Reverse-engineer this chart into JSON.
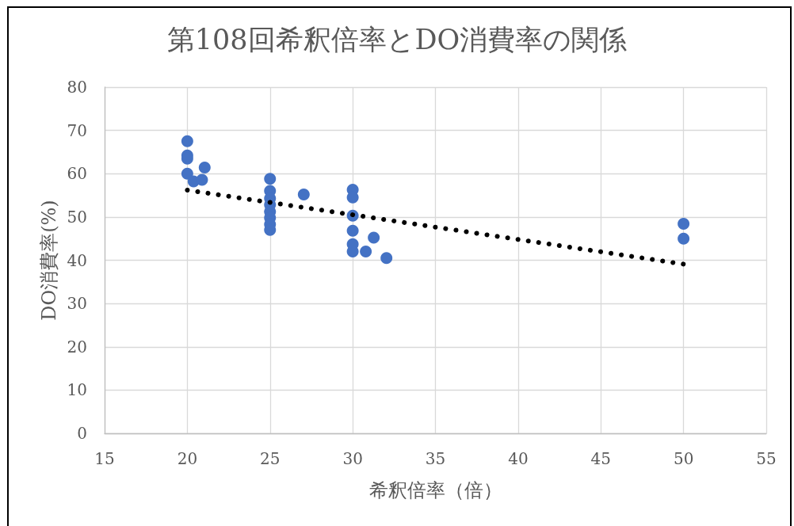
{
  "chart_data": {
    "type": "scatter",
    "title": "第108回希釈倍率とDO消費率の関係",
    "xlabel": "希釈倍率（倍）",
    "ylabel": "DO消費率(%)",
    "xlim": [
      15,
      55
    ],
    "xticks": [
      15,
      20,
      25,
      30,
      35,
      40,
      45,
      50,
      55
    ],
    "ylim": [
      0,
      80
    ],
    "yticks": [
      0,
      10,
      20,
      30,
      40,
      50,
      60,
      70,
      80
    ],
    "grid": true,
    "series": [
      {
        "type": "scatter",
        "color": "#4472c4",
        "marker": "circle",
        "x": [
          20,
          20,
          20,
          20,
          20.38,
          20.89,
          21.05,
          25,
          25,
          25,
          25,
          25,
          25,
          25,
          25,
          27.04,
          30,
          30,
          30,
          30,
          30,
          30,
          30.79,
          31.27,
          32.04,
          50,
          50
        ],
        "values": [
          67.5,
          64.2,
          63.5,
          60.0,
          58.2,
          58.6,
          61.4,
          58.8,
          56.0,
          54.3,
          52.8,
          51.2,
          49.8,
          48.3,
          47.0,
          55.2,
          56.3,
          54.5,
          50.3,
          46.8,
          43.7,
          42.0,
          42.0,
          45.2,
          40.5,
          48.4,
          45.0
        ]
      },
      {
        "type": "line",
        "color": "#000000",
        "marker": "none",
        "line_style": "dotted",
        "x": [
          20,
          50
        ],
        "values": [
          56.2,
          39.1
        ]
      }
    ]
  }
}
